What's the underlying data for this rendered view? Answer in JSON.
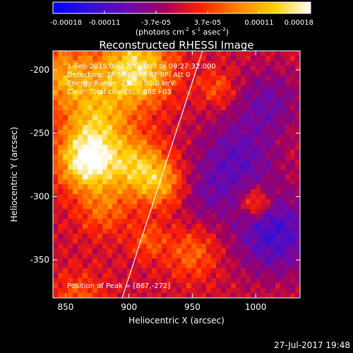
{
  "colorbar": {
    "tick_labels": [
      "-0.00018",
      "-0.00011",
      "-3.7e-05",
      "3.7e-05",
      "0.00011",
      "0.00018"
    ],
    "units_prefix": "(photons cm",
    "units_exp1": "-2",
    "units_mid": " s",
    "units_exp2": "-1",
    "units_mid2": " asec",
    "units_exp3": "-2",
    "units_suffix": ")",
    "range": [
      -0.00018,
      0.00018
    ],
    "colors": [
      "#0000ff",
      "#3010d8",
      "#6a0ab0",
      "#a00060",
      "#ff2000",
      "#ff8000",
      "#ffd000",
      "#ffffff"
    ]
  },
  "chart_data": {
    "type": "heatmap",
    "title": "Reconstructed RHESSI Image",
    "xlabel": "Heliocentric X (arcsec)",
    "ylabel": "Heliocentric Y (arcsec)",
    "xlim": [
      840,
      1035
    ],
    "ylim": [
      -380,
      -185
    ],
    "x_ticks": [
      850,
      900,
      950,
      1000
    ],
    "y_ticks": [
      -200,
      -250,
      -300,
      -350
    ],
    "annotations": [
      "1-Feb-2015 09:17:32.000 to 09:27:32.000",
      "Detectors: 3F 5F 6F 7F 8F 9F, Att 0",
      "Energy Range: 25.0 - 50.0 keV",
      "Clean   Total counts: 9.66E+03"
    ],
    "peak_label": "Position of Peak = [867,-272]",
    "peak": [
      867,
      -272
    ],
    "limb_line": [
      [
        893,
        -385
      ],
      [
        958,
        -185
      ]
    ]
  },
  "footer": {
    "date": "27-Jul-2017 19:48"
  }
}
